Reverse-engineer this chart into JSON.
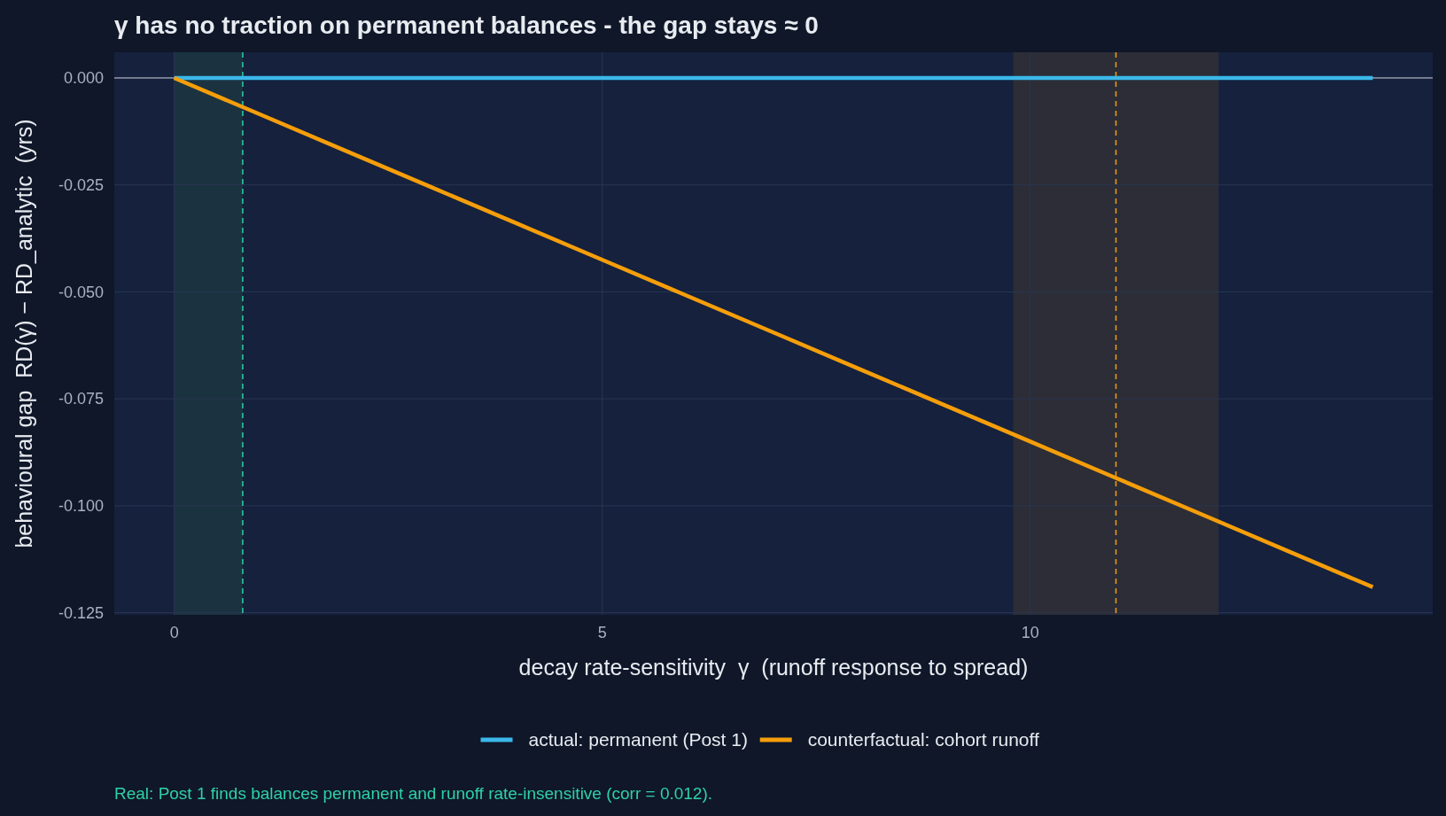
{
  "chart_data": {
    "type": "line",
    "title": "γ has no traction on permanent balances - the gap stays ≈ 0",
    "xlabel": "decay rate-sensitivity  γ  (runoff response to spread)",
    "ylabel": "behavioural gap  RD(γ) − RD_analytic  (yrs)",
    "x": [
      0,
      1,
      2,
      3,
      4,
      5,
      6,
      7,
      8,
      9,
      10,
      11,
      12,
      13,
      14
    ],
    "series": [
      {
        "name": "actual: permanent (Post 1)",
        "color": "#3bb8ea",
        "values": [
          0,
          0,
          0,
          0,
          0,
          0,
          0,
          0,
          0,
          0,
          0,
          0,
          0,
          0,
          0
        ]
      },
      {
        "name": "counterfactual: cohort runoff",
        "color": "#f59e0b",
        "values": [
          0,
          -0.0085,
          -0.017,
          -0.0255,
          -0.034,
          -0.0425,
          -0.051,
          -0.0595,
          -0.068,
          -0.0765,
          -0.085,
          -0.0935,
          -0.102,
          -0.1105,
          -0.119
        ]
      }
    ],
    "xlim": [
      -0.7,
      14.7
    ],
    "xticks": [
      0,
      5,
      10
    ],
    "ylim": [
      -0.1255,
      0.006
    ],
    "yticks": [
      {
        "value": 0,
        "label": "0.000"
      },
      {
        "value": -0.025,
        "label": "-0.025"
      },
      {
        "value": -0.05,
        "label": "-0.050"
      },
      {
        "value": -0.075,
        "label": "-0.075"
      },
      {
        "value": -0.1,
        "label": "-0.100"
      },
      {
        "value": -0.125,
        "label": "-0.125"
      }
    ],
    "bands": [
      {
        "axis": "x",
        "from": 0,
        "to": 0.8,
        "color": "#1b3340"
      },
      {
        "axis": "x",
        "from": 9.8,
        "to": 12.2,
        "color": "#2c2d36"
      }
    ],
    "ref_lines": [
      {
        "axis": "x",
        "value": 0.8,
        "color": "#2fd1a6",
        "line_style": "dashed"
      },
      {
        "axis": "x",
        "value": 11,
        "color": "#f59e0b",
        "line_style": "dashed"
      },
      {
        "axis": "y",
        "value": 0,
        "color": "#c8ccd4",
        "line_style": "solid"
      }
    ],
    "grid": true,
    "legend": "bottom",
    "line_style": "solid",
    "annotations": [
      "Real: Post 1 finds balances permanent and runoff rate-insensitive (corr = 0.012)."
    ]
  }
}
